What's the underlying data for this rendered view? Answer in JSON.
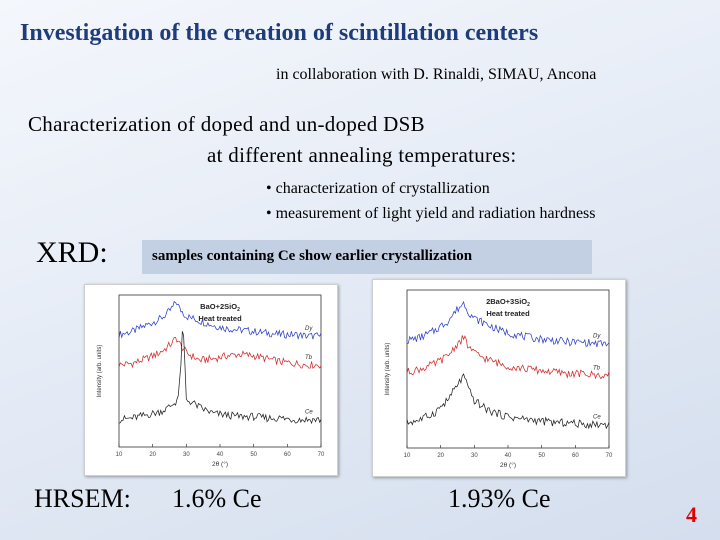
{
  "slide": {
    "title": "Investigation of the creation of scintillation centers",
    "collaboration": "in collaboration with D. Rinaldi, SIMAU, Ancona",
    "heading_line1": "Characterization of doped and un-doped DSB",
    "heading_line2": "at different annealing temperatures:",
    "bullets": [
      "• characterization of crystallization",
      "• measurement of light yield and radiation hardness"
    ],
    "xrd_label": "XRD:",
    "note": "samples containing Ce show earlier crystallization",
    "hrsem_label": "HRSEM:",
    "ce_label_1": "1.6% Ce",
    "ce_label_2": "1.93% Ce",
    "page_number": "4"
  },
  "chart_data": [
    {
      "type": "line",
      "title_line1": "BaO+2SiO",
      "title_sub": "2",
      "title_line2": "Heat treated",
      "xlabel": "2θ (°)",
      "ylabel": "Intensity (arb. units)",
      "xlim": [
        10,
        70
      ],
      "x_ticks": [
        "10",
        "20",
        "30",
        "40",
        "50",
        "60",
        "70"
      ],
      "colors": {
        "Dy": "#2e3fc9",
        "Tb": "#d42b2b",
        "Ce": "#222222"
      },
      "series": [
        {
          "name": "Dy",
          "x": [
            10,
            14,
            18,
            22,
            24,
            26,
            27,
            28,
            30,
            34,
            38,
            42,
            46,
            50,
            54,
            58,
            62,
            66,
            70
          ],
          "y": [
            0.74,
            0.76,
            0.8,
            0.84,
            0.87,
            0.92,
            0.96,
            0.91,
            0.86,
            0.83,
            0.8,
            0.78,
            0.77,
            0.76,
            0.75,
            0.74,
            0.74,
            0.73,
            0.73
          ]
        },
        {
          "name": "Tb",
          "x": [
            10,
            14,
            18,
            22,
            24,
            26,
            27,
            28,
            30,
            34,
            38,
            42,
            46,
            50,
            54,
            58,
            62,
            66,
            70
          ],
          "y": [
            0.54,
            0.55,
            0.58,
            0.62,
            0.65,
            0.69,
            0.72,
            0.68,
            0.62,
            0.57,
            0.58,
            0.6,
            0.61,
            0.6,
            0.58,
            0.56,
            0.55,
            0.54,
            0.54
          ]
        },
        {
          "name": "Ce",
          "x": [
            10,
            14,
            18,
            22,
            24,
            26,
            27,
            27.6,
            28.2,
            29,
            30,
            32,
            34,
            38,
            42,
            46,
            50,
            54,
            58,
            62,
            66,
            70
          ],
          "y": [
            0.18,
            0.19,
            0.21,
            0.23,
            0.25,
            0.28,
            0.3,
            0.34,
            0.46,
            0.83,
            0.31,
            0.29,
            0.26,
            0.22,
            0.21,
            0.2,
            0.2,
            0.19,
            0.19,
            0.18,
            0.18,
            0.18
          ]
        }
      ]
    },
    {
      "type": "line",
      "title_line1": "2BaO+3SiO",
      "title_sub": "2",
      "title_line2": "Heat treated",
      "xlabel": "2θ (°)",
      "ylabel": "Intensity (arb. units)",
      "xlim": [
        10,
        70
      ],
      "x_ticks": [
        "10",
        "20",
        "30",
        "40",
        "50",
        "60",
        "70"
      ],
      "colors": {
        "Dy": "#2e3fc9",
        "Tb": "#d42b2b",
        "Ce": "#222222"
      },
      "series": [
        {
          "name": "Dy",
          "x": [
            10,
            14,
            18,
            22,
            25,
            27,
            28,
            30,
            32,
            34,
            38,
            42,
            46,
            50,
            54,
            58,
            62,
            66,
            70
          ],
          "y": [
            0.68,
            0.7,
            0.74,
            0.8,
            0.88,
            0.92,
            0.87,
            0.82,
            0.8,
            0.78,
            0.74,
            0.72,
            0.7,
            0.69,
            0.68,
            0.67,
            0.67,
            0.66,
            0.66
          ]
        },
        {
          "name": "Tb",
          "x": [
            10,
            14,
            18,
            22,
            25,
            27,
            28,
            30,
            32,
            34,
            38,
            42,
            46,
            50,
            54,
            58,
            62,
            66,
            70
          ],
          "y": [
            0.48,
            0.5,
            0.53,
            0.58,
            0.66,
            0.7,
            0.65,
            0.6,
            0.58,
            0.56,
            0.53,
            0.51,
            0.5,
            0.49,
            0.48,
            0.47,
            0.47,
            0.46,
            0.46
          ]
        },
        {
          "name": "Ce",
          "x": [
            10,
            14,
            18,
            22,
            25,
            27,
            28,
            30,
            32,
            34,
            38,
            42,
            46,
            50,
            54,
            58,
            62,
            66,
            70
          ],
          "y": [
            0.16,
            0.18,
            0.22,
            0.3,
            0.4,
            0.46,
            0.38,
            0.3,
            0.27,
            0.24,
            0.21,
            0.19,
            0.18,
            0.17,
            0.16,
            0.16,
            0.15,
            0.15,
            0.15
          ]
        }
      ]
    }
  ]
}
